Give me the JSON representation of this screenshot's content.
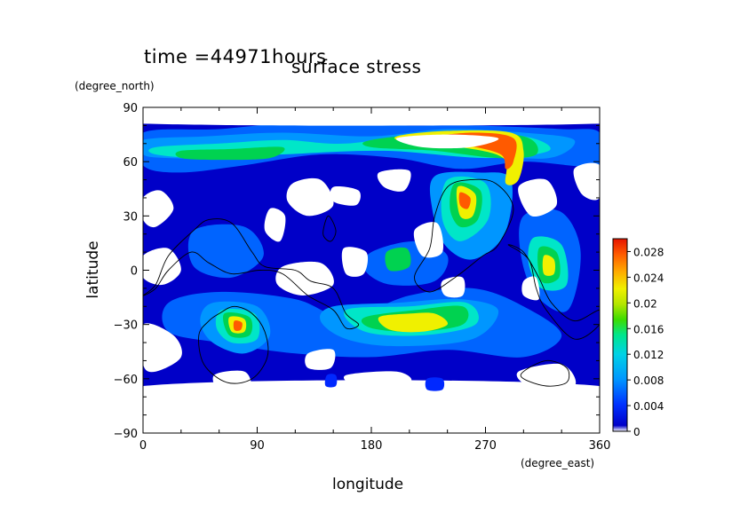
{
  "chart_data": {
    "type": "heatmap",
    "title": "surface stress",
    "subtitle": "time =44971hours",
    "xlabel": "longitude",
    "ylabel": "latitude",
    "x_units": "(degree_east)",
    "y_units": "(degree_north)",
    "xlim": [
      0,
      360
    ],
    "ylim": [
      -90,
      90
    ],
    "xticks": [
      "0",
      "90",
      "180",
      "270",
      "360"
    ],
    "yticks": [
      "90",
      "60",
      "30",
      "0",
      "−30",
      "−60",
      "−90"
    ],
    "colorbar": {
      "min": 0,
      "max": 0.03,
      "ticks": [
        "0",
        "0.004",
        "0.008",
        "0.012",
        "0.016",
        "0.02",
        "0.024",
        "0.028"
      ],
      "colors": [
        "#ffffff",
        "#0000c8",
        "#0028ff",
        "#0064ff",
        "#0096ff",
        "#00c8ff",
        "#00e6c8",
        "#00e68c",
        "#00d250",
        "#3cdc00",
        "#a0e600",
        "#f0f000",
        "#ffc800",
        "#ff9600",
        "#ff5a00",
        "#f01e00"
      ]
    },
    "hotspots": [
      {
        "lon": 265,
        "lat": 70,
        "value": 0.03
      },
      {
        "lon": 245,
        "lat": 38,
        "value": 0.028
      },
      {
        "lon": 200,
        "lat": -32,
        "value": 0.026
      },
      {
        "lon": 75,
        "lat": -30,
        "value": 0.026
      },
      {
        "lon": 320,
        "lat": 3,
        "value": 0.022
      },
      {
        "lon": 95,
        "lat": 70,
        "value": 0.016
      },
      {
        "lon": 45,
        "lat": 62,
        "value": 0.016
      },
      {
        "lon": 200,
        "lat": 5,
        "value": 0.014
      }
    ]
  }
}
